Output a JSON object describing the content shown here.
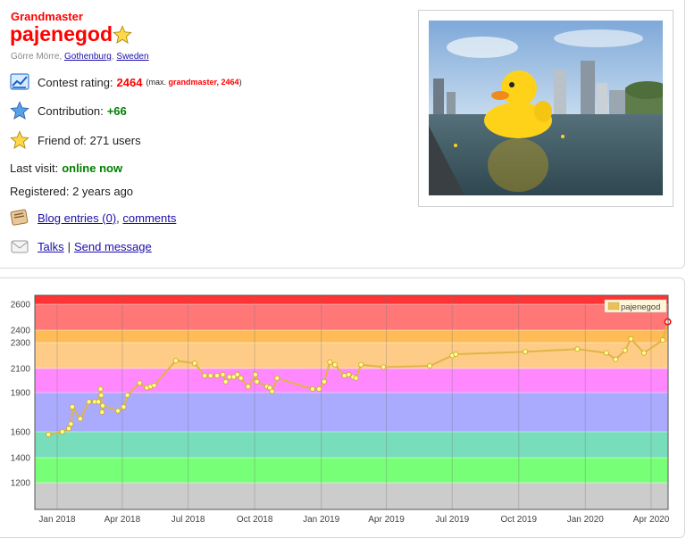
{
  "profile": {
    "rank": "Grandmaster",
    "handle": "pajenegod",
    "location": {
      "name": "Görre Mörre",
      "city": "Gothenburg",
      "country": "Sweden"
    },
    "contest_rating": {
      "label": "Contest rating:",
      "value": "2464",
      "max_prefix": "(max.",
      "max_rank": "grandmaster,",
      "max_value": "2464",
      "max_suffix": ")"
    },
    "contribution": {
      "label": "Contribution:",
      "value": "+66"
    },
    "friend_of": "Friend of: 271 users",
    "last_visit": {
      "label": "Last visit:",
      "value": "online now"
    },
    "registered": "Registered: 2 years ago",
    "blog_link": "Blog entries (0)",
    "comments_link": "comments",
    "talks_link": "Talks",
    "separator": "|",
    "send_message_link": "Send message"
  },
  "colors": {
    "red_rank": "#ff0000",
    "link": "#1a0dab",
    "online": "#008000",
    "series_line": "#e0b544",
    "series_point": "#ffff88"
  },
  "chart_data": {
    "type": "line",
    "legend": {
      "placement": "top-right",
      "entries": [
        "pajenegod"
      ]
    },
    "x_ticks": [
      "Jan 2018",
      "Apr 2018",
      "Jul 2018",
      "Oct 2018",
      "Jan 2019",
      "Apr 2019",
      "Jul 2019",
      "Oct 2019",
      "Jan 2020",
      "Apr 2020"
    ],
    "y_ticks": [
      1200,
      1400,
      1600,
      1900,
      2100,
      2300,
      2400,
      2600
    ],
    "ylim": [
      1000,
      2650
    ],
    "grid": true,
    "bands": [
      {
        "from": 1000,
        "to": 1200,
        "color": "#cccccc"
      },
      {
        "from": 1200,
        "to": 1400,
        "color": "#77ff77"
      },
      {
        "from": 1400,
        "to": 1600,
        "color": "#77ddbb"
      },
      {
        "from": 1600,
        "to": 1900,
        "color": "#aaaaff"
      },
      {
        "from": 1900,
        "to": 2100,
        "color": "#ff88ff"
      },
      {
        "from": 2100,
        "to": 2300,
        "color": "#ffcc88"
      },
      {
        "from": 2300,
        "to": 2400,
        "color": "#ffbb55"
      },
      {
        "from": 2400,
        "to": 2600,
        "color": "#ff7777"
      },
      {
        "from": 2600,
        "to": 2650,
        "color": "#ff3333"
      }
    ],
    "series": [
      {
        "name": "pajenegod",
        "points": [
          [
            "2017-12-20",
            1580
          ],
          [
            "2018-01-08",
            1600
          ],
          [
            "2018-01-17",
            1625
          ],
          [
            "2018-01-20",
            1660
          ],
          [
            "2018-01-22",
            1790
          ],
          [
            "2018-02-02",
            1700
          ],
          [
            "2018-02-14",
            1830
          ],
          [
            "2018-02-22",
            1830
          ],
          [
            "2018-02-27",
            1830
          ],
          [
            "2018-03-02",
            1930
          ],
          [
            "2018-03-03",
            1880
          ],
          [
            "2018-03-04",
            1750
          ],
          [
            "2018-03-05",
            1800
          ],
          [
            "2018-03-26",
            1760
          ],
          [
            "2018-04-03",
            1790
          ],
          [
            "2018-04-08",
            1880
          ],
          [
            "2018-04-25",
            1980
          ],
          [
            "2018-05-05",
            1940
          ],
          [
            "2018-05-10",
            1950
          ],
          [
            "2018-05-15",
            1960
          ],
          [
            "2018-06-14",
            2160
          ],
          [
            "2018-07-10",
            2140
          ],
          [
            "2018-07-24",
            2040
          ],
          [
            "2018-08-01",
            2040
          ],
          [
            "2018-08-10",
            2040
          ],
          [
            "2018-08-18",
            2050
          ],
          [
            "2018-08-22",
            1990
          ],
          [
            "2018-08-27",
            2030
          ],
          [
            "2018-09-02",
            2030
          ],
          [
            "2018-09-07",
            2050
          ],
          [
            "2018-09-12",
            2020
          ],
          [
            "2018-09-22",
            1950
          ],
          [
            "2018-10-02",
            2050
          ],
          [
            "2018-10-04",
            1990
          ],
          [
            "2018-10-18",
            1950
          ],
          [
            "2018-10-22",
            1940
          ],
          [
            "2018-10-25",
            1910
          ],
          [
            "2018-11-01",
            2020
          ],
          [
            "2018-12-20",
            1930
          ],
          [
            "2018-12-29",
            1930
          ],
          [
            "2019-01-05",
            1990
          ],
          [
            "2019-01-13",
            2150
          ],
          [
            "2019-01-20",
            2130
          ],
          [
            "2019-02-02",
            2040
          ],
          [
            "2019-02-08",
            2050
          ],
          [
            "2019-02-14",
            2030
          ],
          [
            "2019-02-18",
            2020
          ],
          [
            "2019-02-25",
            2130
          ],
          [
            "2019-03-28",
            2110
          ],
          [
            "2019-05-31",
            2120
          ],
          [
            "2019-07-01",
            2200
          ],
          [
            "2019-07-06",
            2210
          ],
          [
            "2019-10-10",
            2230
          ],
          [
            "2019-12-21",
            2250
          ],
          [
            "2020-01-30",
            2220
          ],
          [
            "2020-02-12",
            2170
          ],
          [
            "2020-02-25",
            2240
          ],
          [
            "2020-03-04",
            2330
          ],
          [
            "2020-03-22",
            2220
          ],
          [
            "2020-04-17",
            2320
          ],
          [
            "2020-04-24",
            2464
          ]
        ]
      }
    ]
  }
}
